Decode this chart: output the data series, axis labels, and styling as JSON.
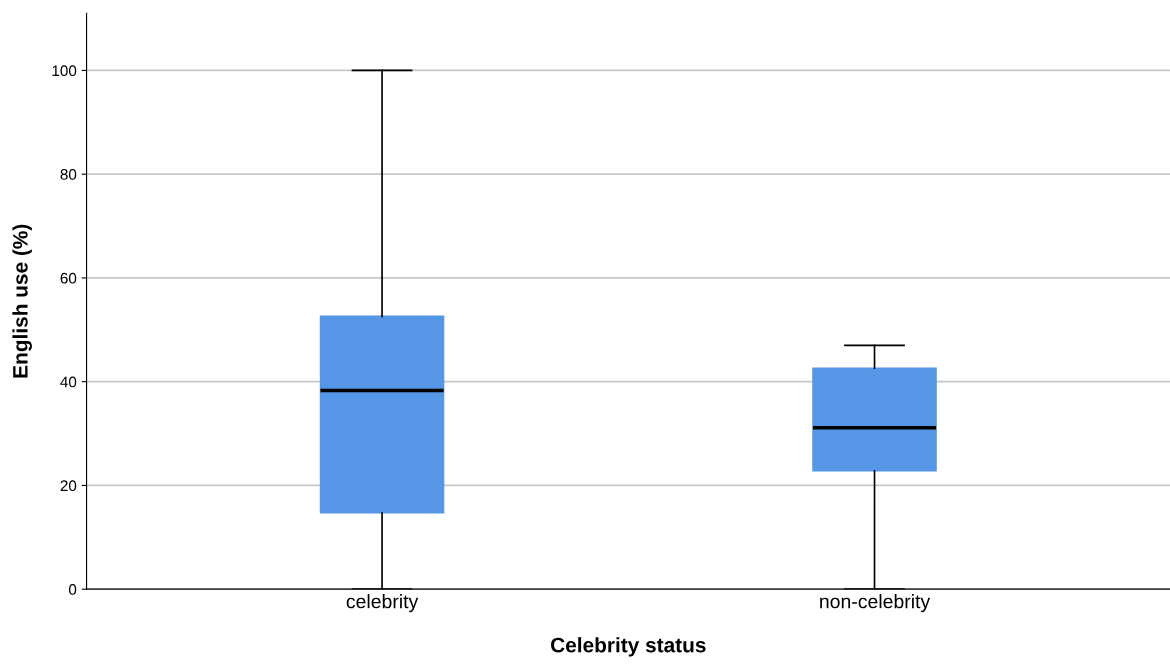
{
  "chart_data": {
    "type": "box",
    "xlabel": "Celebrity status",
    "ylabel": "English use (%)",
    "categories": [
      "celebrity",
      "non-celebrity"
    ],
    "boxes": [
      {
        "low": 0,
        "q1": 14.7,
        "median": 38.3,
        "q3": 52.6,
        "high": 100
      },
      {
        "low": 0,
        "q1": 22.8,
        "median": 31.1,
        "q3": 42.6,
        "high": 47
      }
    ],
    "color": "#5596e6",
    "ylim": [
      0,
      111
    ],
    "yticks": [
      0,
      20,
      40,
      60,
      80,
      100
    ],
    "grid": "y"
  }
}
